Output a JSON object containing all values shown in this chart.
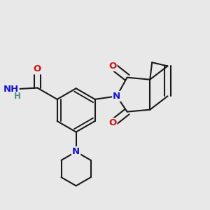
{
  "bg_color": "#e8e8e8",
  "bond_color": "#1a1a1a",
  "bond_lw": 1.5,
  "atom_colors": {
    "N": "#1414cc",
    "O": "#cc1414",
    "H": "#4a9090"
  },
  "font_size": 9.5,
  "figsize": [
    3.0,
    3.0
  ],
  "dpi": 100,
  "xlim": [
    0.0,
    1.0
  ],
  "ylim": [
    0.05,
    1.05
  ]
}
